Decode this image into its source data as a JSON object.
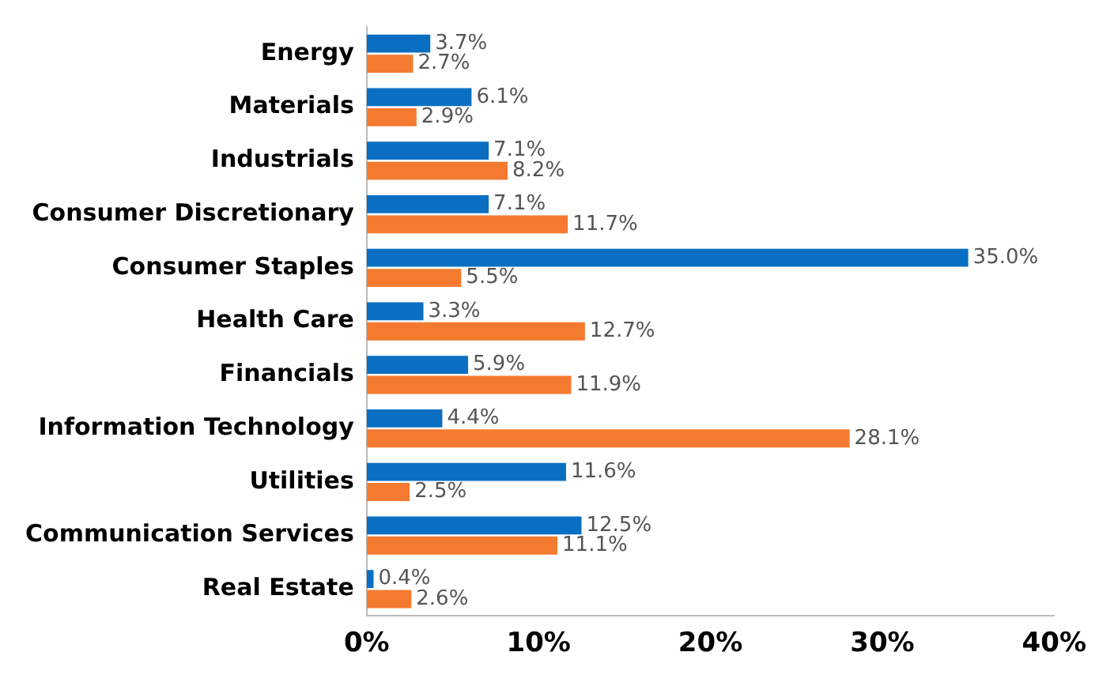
{
  "chart_data": {
    "type": "bar",
    "orientation": "horizontal",
    "categories": [
      "Energy",
      "Materials",
      "Industrials",
      "Consumer Discretionary",
      "Consumer Staples",
      "Health Care",
      "Financials",
      "Information Technology",
      "Utilities",
      "Communication Services",
      "Real Estate"
    ],
    "series": [
      {
        "color": "#0a6fc2",
        "values": [
          3.7,
          6.1,
          7.1,
          7.1,
          35.0,
          3.3,
          5.9,
          4.4,
          11.6,
          12.5,
          0.4
        ],
        "value_labels": [
          "3.7%",
          "6.1%",
          "7.1%",
          "7.1%",
          "35.0%",
          "3.3%",
          "5.9%",
          "4.4%",
          "11.6%",
          "12.5%",
          "0.4%"
        ]
      },
      {
        "color": "#f47a30",
        "values": [
          2.7,
          2.9,
          8.2,
          11.7,
          5.5,
          12.7,
          11.9,
          28.1,
          2.5,
          11.1,
          2.6
        ],
        "value_labels": [
          "2.7%",
          "2.9%",
          "8.2%",
          "11.7%",
          "5.5%",
          "12.7%",
          "11.9%",
          "28.1%",
          "2.5%",
          "11.1%",
          "2.6%"
        ]
      }
    ],
    "xlim": [
      0,
      40
    ],
    "xticks": [
      {
        "value": 0,
        "label": "0%"
      },
      {
        "value": 10,
        "label": "10%"
      },
      {
        "value": 20,
        "label": "20%"
      },
      {
        "value": 30,
        "label": "30%"
      },
      {
        "value": 40,
        "label": "40%"
      }
    ],
    "grid": false,
    "legend": false
  }
}
